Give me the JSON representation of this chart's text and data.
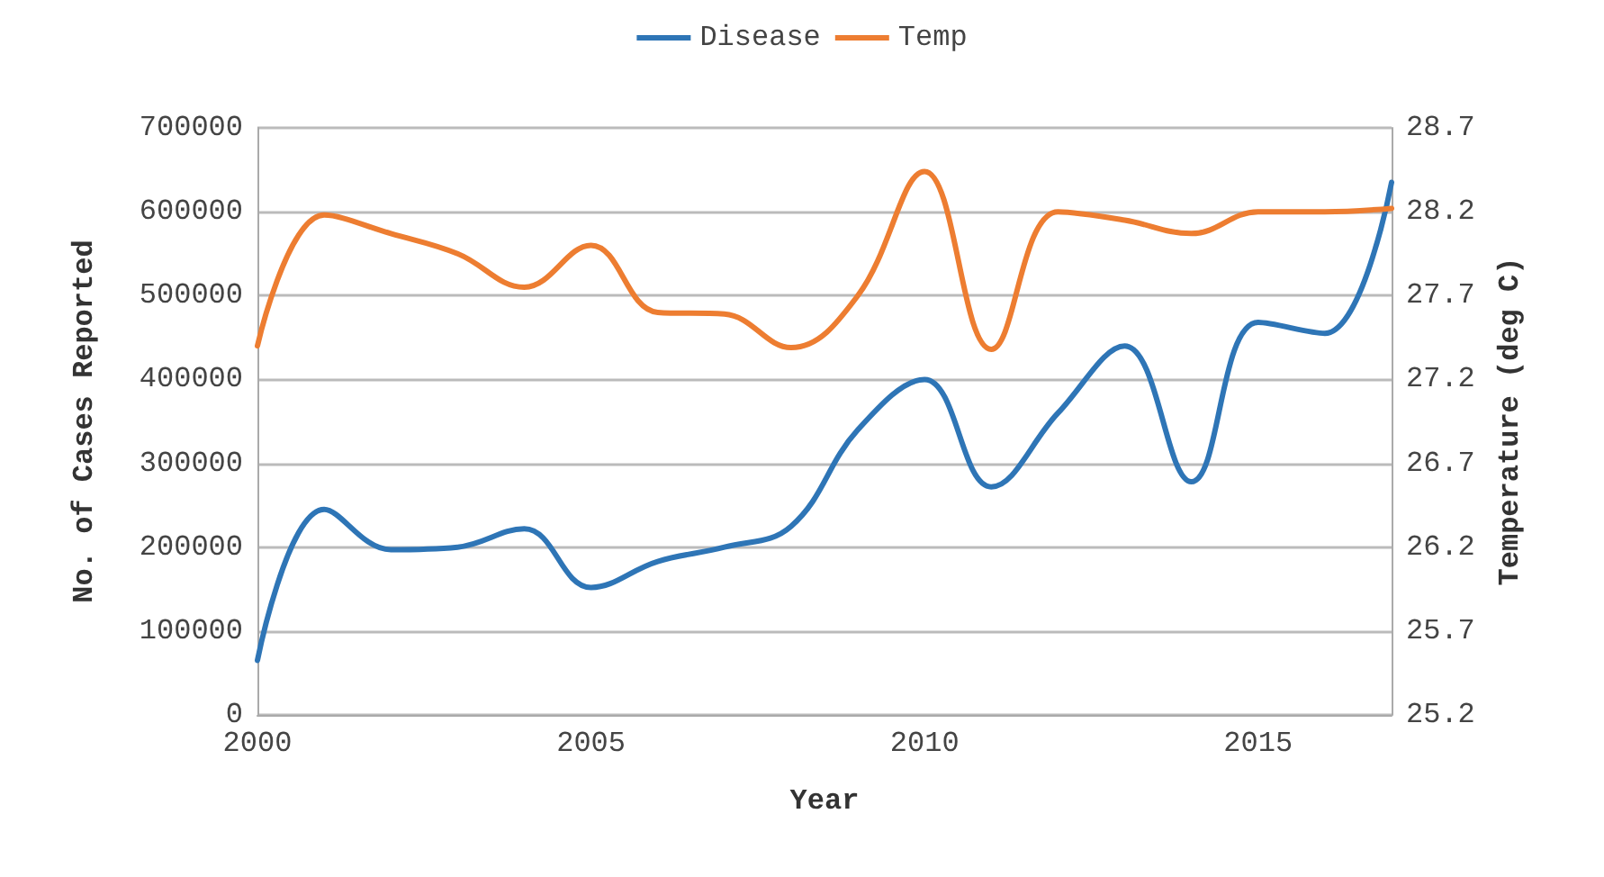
{
  "chart_data": {
    "type": "line",
    "xlabel": "Year",
    "ylabel": "No. of Cases Reported",
    "y2label": "Temperature (deg C)",
    "x": [
      2000,
      2001,
      2002,
      2003,
      2004,
      2005,
      2006,
      2007,
      2008,
      2009,
      2010,
      2011,
      2012,
      2013,
      2014,
      2015,
      2016,
      2017
    ],
    "series": [
      {
        "name": "Disease",
        "color": "#2e75b6",
        "values": [
          65000,
          245000,
          197000,
          200000,
          222000,
          152000,
          183000,
          200000,
          225000,
          340000,
          400000,
          272000,
          360000,
          440000,
          278000,
          468000,
          455000,
          635000
        ]
      },
      {
        "name": "Temp",
        "color": "#ed7d31",
        "axis": "y2",
        "values": [
          27.4,
          28.18,
          28.07,
          27.95,
          27.75,
          28.0,
          27.6,
          27.59,
          27.39,
          27.7,
          28.44,
          27.38,
          28.2,
          28.15,
          28.07,
          28.2,
          28.2,
          28.22
        ]
      }
    ],
    "xlim": [
      2000,
      2017
    ],
    "xticks": [
      2000,
      2005,
      2010,
      2015
    ],
    "ylim": [
      0,
      700000
    ],
    "yticks": [
      0,
      100000,
      200000,
      300000,
      400000,
      500000,
      600000,
      700000
    ],
    "y2lim": [
      25.2,
      28.7
    ],
    "y2ticks": [
      25.2,
      25.7,
      26.2,
      26.7,
      27.2,
      27.7,
      28.2,
      28.7
    ],
    "grid": "y",
    "legend": "top",
    "marker": "none",
    "line_style": "solid"
  }
}
